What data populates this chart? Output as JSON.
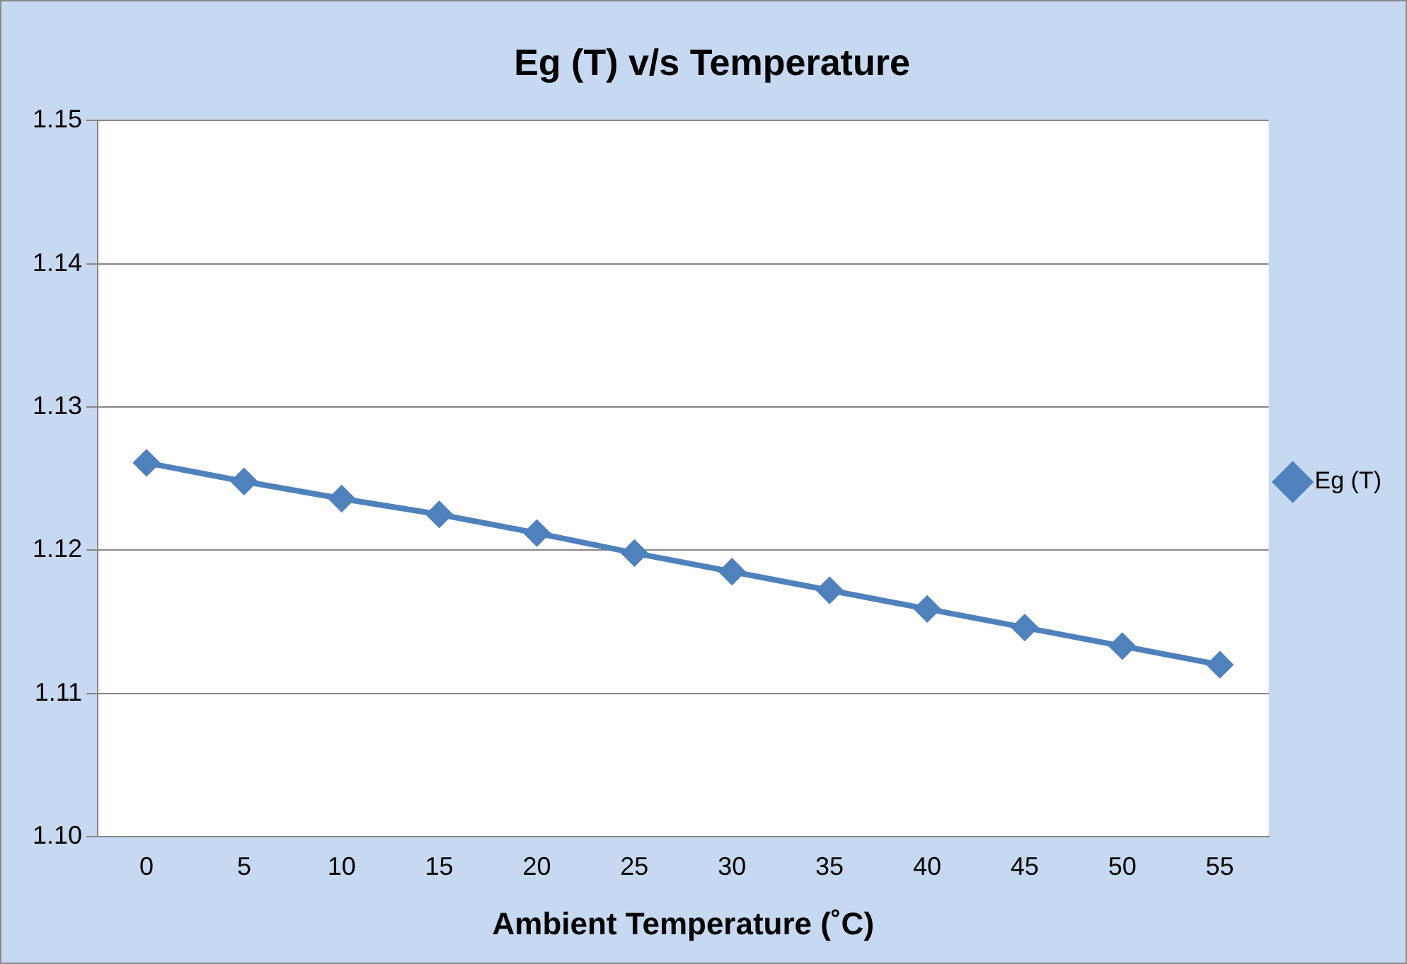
{
  "chart_data": {
    "type": "line",
    "title": "Eg (T) v/s Temperature",
    "xlabel": "Ambient Temperature (˚C)",
    "categories": [
      "0",
      "5",
      "10",
      "15",
      "20",
      "25",
      "30",
      "35",
      "40",
      "45",
      "50",
      "55"
    ],
    "series": [
      {
        "name": "Eg (T)",
        "color": "#4f81bd",
        "values": [
          1.1261,
          1.1248,
          1.1236,
          1.1225,
          1.1212,
          1.1198,
          1.1185,
          1.1172,
          1.1159,
          1.1146,
          1.1133,
          1.112
        ]
      }
    ],
    "ylim": [
      1.1,
      1.15
    ],
    "yticks": [
      {
        "value": 1.1,
        "label": "1.10"
      },
      {
        "value": 1.11,
        "label": "1.11"
      },
      {
        "value": 1.12,
        "label": "1.12"
      },
      {
        "value": 1.13,
        "label": "1.13"
      },
      {
        "value": 1.14,
        "label": "1.14"
      },
      {
        "value": 1.15,
        "label": "1.15"
      }
    ],
    "grid": "y",
    "legend": "right",
    "marker": "diamond",
    "line_style": "solid"
  }
}
